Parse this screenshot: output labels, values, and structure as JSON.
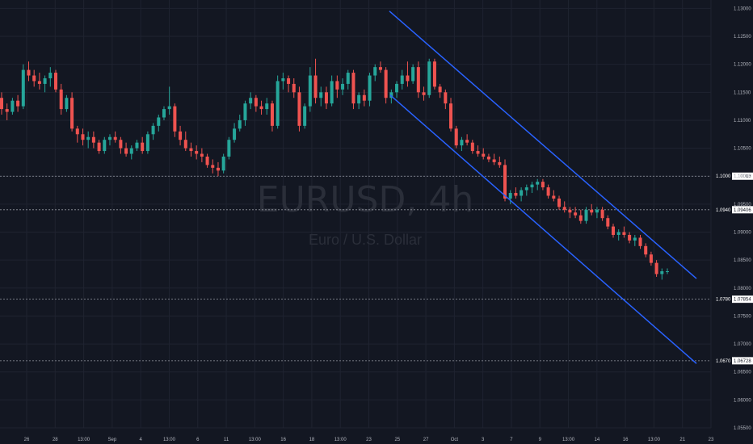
{
  "colors": {
    "background": "#131722",
    "grid": "#1f2330",
    "up": "#26a69a",
    "down": "#ef5350",
    "channel": "#2962ff",
    "axis_text": "#b2b5be",
    "level_line": "#9598a1",
    "watermark": "#2a2e39"
  },
  "watermark": {
    "symbol": "EURUSD, 4h",
    "description": "Euro / U.S. Dollar"
  },
  "chart_data": {
    "type": "candlestick",
    "price_axis": {
      "ticks": [
        "1.13000",
        "1.12500",
        "1.12000",
        "1.11500",
        "1.11000",
        "1.10500",
        "1.10000",
        "1.09500",
        "1.09000",
        "1.08500",
        "1.08000",
        "1.07500",
        "1.07000",
        "1.06500",
        "1.06000",
        "1.05500"
      ],
      "range": [
        1.055,
        1.1315
      ]
    },
    "time_axis": {
      "labels": [
        "26",
        "28",
        "13:00",
        "Sep",
        "4",
        "13:00",
        "6",
        "11",
        "13:00",
        "16",
        "18",
        "13:00",
        "23",
        "25",
        "27",
        "Oct",
        "3",
        "7",
        "9",
        "13:00",
        "14",
        "16",
        "13:00",
        "21",
        "23"
      ]
    },
    "levels": [
      {
        "price": 1.1,
        "axis_label": "1.1000",
        "tag": "1.10013"
      },
      {
        "price": 1.094,
        "axis_label": "1.0940",
        "tag": "1.09406"
      },
      {
        "price": 1.078,
        "axis_label": "1.0780",
        "tag": "1.07854"
      },
      {
        "price": 1.067,
        "axis_label": "1.0670",
        "tag": "1.06728"
      }
    ],
    "channel": {
      "upper": {
        "start_price": 1.1295,
        "end_price": 1.0817
      },
      "lower": {
        "start_price": 1.1145,
        "end_price": 1.0665
      }
    },
    "series": [
      {
        "values": [
          [
            1.114,
            1.115,
            1.111,
            1.112
          ],
          [
            1.112,
            1.113,
            1.11,
            1.1115
          ],
          [
            1.1115,
            1.114,
            1.111,
            1.1135
          ],
          [
            1.1135,
            1.1145,
            1.1115,
            1.1125
          ],
          [
            1.1125,
            1.12,
            1.112,
            1.119
          ],
          [
            1.119,
            1.1205,
            1.117,
            1.118
          ],
          [
            1.118,
            1.119,
            1.116,
            1.117
          ],
          [
            1.117,
            1.1185,
            1.1155,
            1.1165
          ],
          [
            1.1165,
            1.118,
            1.115,
            1.1175
          ],
          [
            1.1175,
            1.1195,
            1.116,
            1.1185
          ],
          [
            1.1185,
            1.119,
            1.115,
            1.1155
          ],
          [
            1.1155,
            1.1165,
            1.111,
            1.112
          ],
          [
            1.112,
            1.1145,
            1.1115,
            1.114
          ],
          [
            1.114,
            1.115,
            1.108,
            1.1085
          ],
          [
            1.1085,
            1.109,
            1.106,
            1.1075
          ],
          [
            1.1075,
            1.1085,
            1.1055,
            1.1065
          ],
          [
            1.1065,
            1.108,
            1.105,
            1.107
          ],
          [
            1.107,
            1.108,
            1.105,
            1.106
          ],
          [
            1.106,
            1.1065,
            1.104,
            1.1045
          ],
          [
            1.1045,
            1.107,
            1.104,
            1.1065
          ],
          [
            1.1065,
            1.1075,
            1.1055,
            1.107
          ],
          [
            1.107,
            1.108,
            1.106,
            1.1065
          ],
          [
            1.1065,
            1.107,
            1.104,
            1.105
          ],
          [
            1.105,
            1.106,
            1.1035,
            1.104
          ],
          [
            1.104,
            1.1055,
            1.103,
            1.105
          ],
          [
            1.105,
            1.1065,
            1.1045,
            1.106
          ],
          [
            1.106,
            1.107,
            1.104,
            1.1045
          ],
          [
            1.1045,
            1.108,
            1.104,
            1.1075
          ],
          [
            1.1075,
            1.1095,
            1.1065,
            1.109
          ],
          [
            1.109,
            1.111,
            1.108,
            1.1105
          ],
          [
            1.1105,
            1.1125,
            1.11,
            1.112
          ],
          [
            1.112,
            1.116,
            1.111,
            1.1125
          ],
          [
            1.1125,
            1.113,
            1.107,
            1.108
          ],
          [
            1.108,
            1.109,
            1.1055,
            1.1065
          ],
          [
            1.1065,
            1.108,
            1.1045,
            1.105
          ],
          [
            1.105,
            1.106,
            1.1035,
            1.1045
          ],
          [
            1.1045,
            1.1055,
            1.103,
            1.104
          ],
          [
            1.104,
            1.105,
            1.1025,
            1.1035
          ],
          [
            1.1035,
            1.104,
            1.1015,
            1.102
          ],
          [
            1.102,
            1.103,
            1.1005,
            1.1015
          ],
          [
            1.1015,
            1.1025,
            1.1,
            1.101
          ],
          [
            1.101,
            1.104,
            1.1005,
            1.1035
          ],
          [
            1.1035,
            1.107,
            1.103,
            1.1065
          ],
          [
            1.1065,
            1.1095,
            1.106,
            1.1085
          ],
          [
            1.1085,
            1.111,
            1.108,
            1.11
          ],
          [
            1.11,
            1.1135,
            1.109,
            1.113
          ],
          [
            1.113,
            1.115,
            1.112,
            1.114
          ],
          [
            1.114,
            1.1145,
            1.1115,
            1.1125
          ],
          [
            1.1125,
            1.1135,
            1.111,
            1.112
          ],
          [
            1.112,
            1.114,
            1.111,
            1.113
          ],
          [
            1.113,
            1.1135,
            1.108,
            1.109
          ],
          [
            1.109,
            1.118,
            1.1085,
            1.117
          ],
          [
            1.117,
            1.1185,
            1.1155,
            1.1175
          ],
          [
            1.1175,
            1.118,
            1.115,
            1.1165
          ],
          [
            1.1165,
            1.1175,
            1.114,
            1.115
          ],
          [
            1.115,
            1.116,
            1.108,
            1.109
          ],
          [
            1.109,
            1.113,
            1.1085,
            1.1125
          ],
          [
            1.1125,
            1.1195,
            1.1115,
            1.118
          ],
          [
            1.118,
            1.121,
            1.113,
            1.114
          ],
          [
            1.114,
            1.116,
            1.1125,
            1.115
          ],
          [
            1.115,
            1.116,
            1.112,
            1.113
          ],
          [
            1.113,
            1.118,
            1.1125,
            1.117
          ],
          [
            1.117,
            1.118,
            1.114,
            1.1155
          ],
          [
            1.1155,
            1.1175,
            1.1145,
            1.1165
          ],
          [
            1.1165,
            1.119,
            1.1155,
            1.1185
          ],
          [
            1.1185,
            1.119,
            1.112,
            1.113
          ],
          [
            1.113,
            1.115,
            1.112,
            1.1145
          ],
          [
            1.1145,
            1.1155,
            1.1125,
            1.1135
          ],
          [
            1.1135,
            1.1185,
            1.1125,
            1.118
          ],
          [
            1.118,
            1.12,
            1.117,
            1.1195
          ],
          [
            1.1195,
            1.1205,
            1.1185,
            1.119
          ],
          [
            1.119,
            1.1195,
            1.113,
            1.114
          ],
          [
            1.114,
            1.1155,
            1.113,
            1.115
          ],
          [
            1.115,
            1.117,
            1.114,
            1.1165
          ],
          [
            1.1165,
            1.119,
            1.1155,
            1.118
          ],
          [
            1.118,
            1.1205,
            1.116,
            1.117
          ],
          [
            1.117,
            1.12,
            1.1165,
            1.1195
          ],
          [
            1.1195,
            1.1205,
            1.114,
            1.115
          ],
          [
            1.115,
            1.116,
            1.1135,
            1.1145
          ],
          [
            1.1145,
            1.121,
            1.114,
            1.1205
          ],
          [
            1.1205,
            1.121,
            1.1155,
            1.116
          ],
          [
            1.116,
            1.1165,
            1.114,
            1.115
          ],
          [
            1.115,
            1.1155,
            1.112,
            1.113
          ],
          [
            1.113,
            1.114,
            1.108,
            1.1085
          ],
          [
            1.1085,
            1.109,
            1.105,
            1.1055
          ],
          [
            1.1055,
            1.107,
            1.1045,
            1.1065
          ],
          [
            1.1065,
            1.1075,
            1.1055,
            1.106
          ],
          [
            1.106,
            1.1065,
            1.104,
            1.1045
          ],
          [
            1.1045,
            1.1055,
            1.1035,
            1.104
          ],
          [
            1.104,
            1.105,
            1.103,
            1.1035
          ],
          [
            1.1035,
            1.104,
            1.1025,
            1.103
          ],
          [
            1.103,
            1.104,
            1.102,
            1.1025
          ],
          [
            1.1025,
            1.1035,
            1.1015,
            1.102
          ],
          [
            1.102,
            1.103,
            1.0955,
            1.096
          ],
          [
            1.096,
            1.0975,
            1.095,
            1.097
          ],
          [
            1.097,
            1.098,
            1.096,
            1.0965
          ],
          [
            1.0965,
            1.098,
            1.0955,
            1.0975
          ],
          [
            1.0975,
            1.0985,
            1.0965,
            1.098
          ],
          [
            1.098,
            1.099,
            1.097,
            1.0985
          ],
          [
            1.0985,
            1.0995,
            1.0975,
            1.099
          ],
          [
            1.099,
            1.0995,
            1.0975,
            1.098
          ],
          [
            1.098,
            1.0985,
            1.096,
            1.0965
          ],
          [
            1.0965,
            1.0975,
            1.0955,
            1.096
          ],
          [
            1.096,
            1.0965,
            1.094,
            1.0945
          ],
          [
            1.0945,
            1.0955,
            1.0935,
            1.094
          ],
          [
            1.094,
            1.0945,
            1.0925,
            1.0935
          ],
          [
            1.0935,
            1.0945,
            1.0925,
            1.093
          ],
          [
            1.093,
            1.094,
            1.0915,
            1.092
          ],
          [
            1.092,
            1.0945,
            1.0915,
            1.094
          ],
          [
            1.094,
            1.095,
            1.093,
            1.0935
          ],
          [
            1.0935,
            1.0945,
            1.0925,
            1.094
          ],
          [
            1.094,
            1.0945,
            1.092,
            1.0925
          ],
          [
            1.0925,
            1.093,
            1.0905,
            1.091
          ],
          [
            1.091,
            1.0915,
            1.089,
            1.0895
          ],
          [
            1.0895,
            1.0905,
            1.0885,
            1.09
          ],
          [
            1.09,
            1.091,
            1.089,
            1.0895
          ],
          [
            1.0895,
            1.09,
            1.088,
            1.0885
          ],
          [
            1.0885,
            1.0895,
            1.0875,
            1.089
          ],
          [
            1.089,
            1.0895,
            1.087,
            1.0875
          ],
          [
            1.0875,
            1.088,
            1.0855,
            1.086
          ],
          [
            1.086,
            1.0865,
            1.084,
            1.0845
          ],
          [
            1.0845,
            1.085,
            1.082,
            1.0825
          ],
          [
            1.0825,
            1.0835,
            1.0815,
            1.083
          ],
          [
            1.083,
            1.0835,
            1.0825,
            1.083
          ]
        ]
      }
    ]
  }
}
